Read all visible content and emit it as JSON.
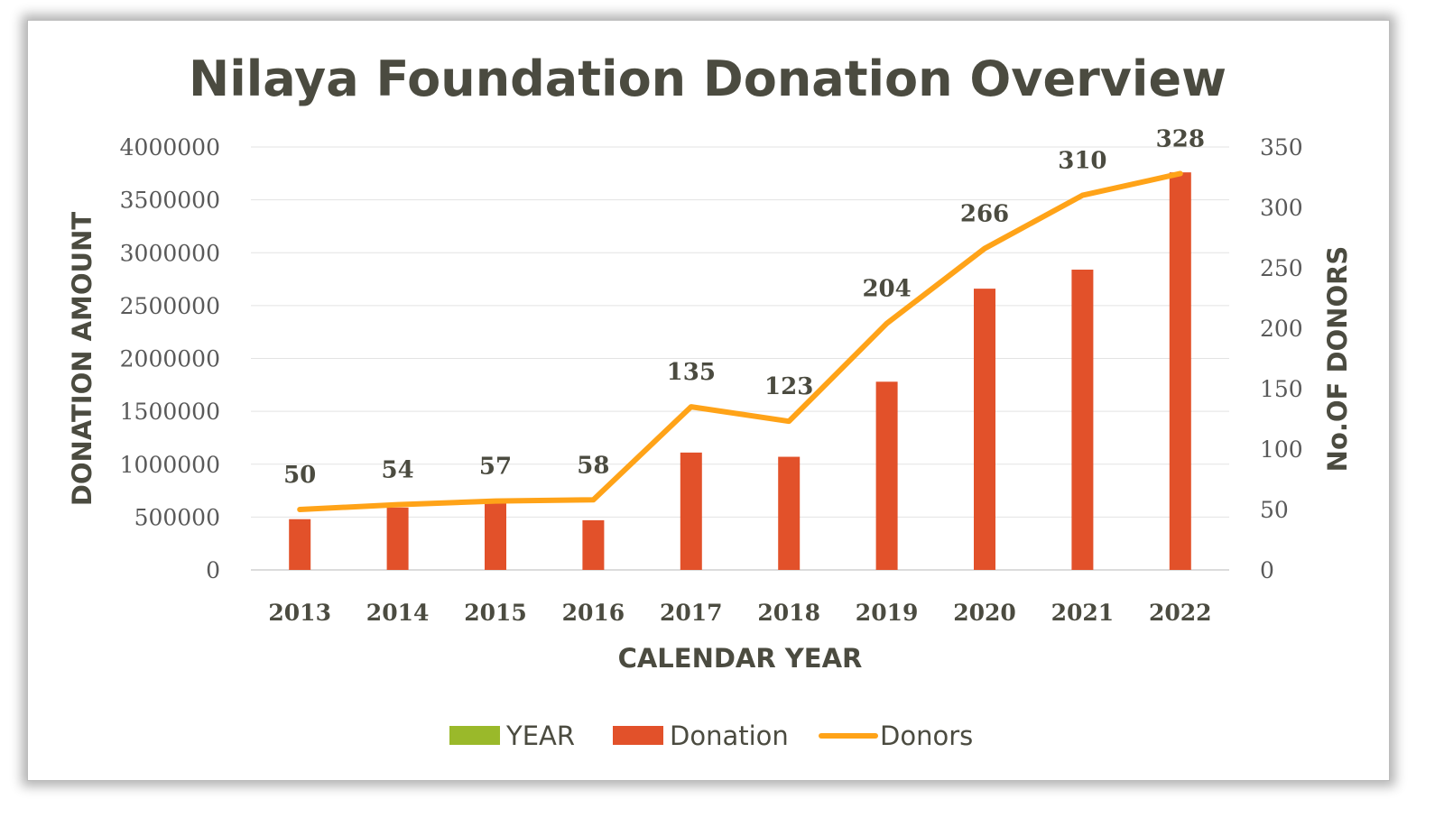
{
  "chart_data": {
    "type": "bar",
    "title": "Nilaya Foundation Donation Overview",
    "xlabel": "CALENDAR YEAR",
    "ylabel": "DONATION AMOUNT",
    "y2label": "No.OF DONORS",
    "categories": [
      "2013",
      "2014",
      "2015",
      "2016",
      "2017",
      "2018",
      "2019",
      "2020",
      "2021",
      "2022"
    ],
    "series": [
      {
        "name": "Donation",
        "type": "bar",
        "axis": "left",
        "color": "#e2512a",
        "values": [
          480000,
          590000,
          630000,
          470000,
          1110000,
          1070000,
          1780000,
          2660000,
          2840000,
          3760000
        ]
      },
      {
        "name": "Donors",
        "type": "line",
        "axis": "right",
        "color": "#ffa318",
        "values": [
          50,
          54,
          57,
          58,
          135,
          123,
          204,
          266,
          310,
          328
        ],
        "data_labels": [
          "50",
          "54",
          "57",
          "58",
          "135",
          "123",
          "204",
          "266",
          "310",
          "328"
        ]
      }
    ],
    "ylim": [
      0,
      4000000
    ],
    "y_ticks": [
      "0",
      "500000",
      "1000000",
      "1500000",
      "2000000",
      "2500000",
      "3000000",
      "3500000",
      "4000000"
    ],
    "y2lim": [
      0,
      350
    ],
    "y2_ticks": [
      "0",
      "50",
      "100",
      "150",
      "200",
      "250",
      "300",
      "350"
    ],
    "grid": true,
    "legend": {
      "position": "bottom",
      "items": [
        {
          "name": "YEAR",
          "color": "#9ab92a",
          "marker": "bar"
        },
        {
          "name": "Donation",
          "color": "#e2512a",
          "marker": "bar"
        },
        {
          "name": "Donors",
          "color": "#ffa318",
          "marker": "line"
        }
      ]
    }
  }
}
